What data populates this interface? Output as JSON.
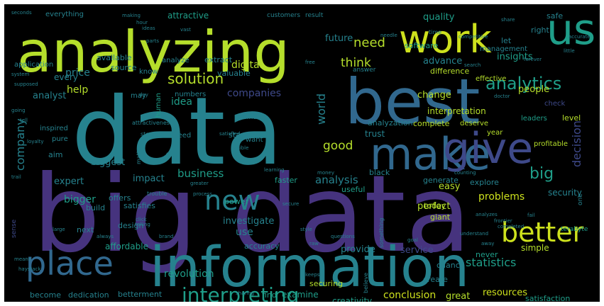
{
  "background": "#000000",
  "palette": {
    "purple": "#46337e",
    "indigo": "#3e4989",
    "blue": "#31688e",
    "teal": "#26828e",
    "green": "#1f9e89",
    "lime": "#b5de2b",
    "yellow": "#cde11d",
    "brightgreen": "#6ece58",
    "lightgreen": "#35b779"
  },
  "words": [
    {
      "text": "big data"
    },
    {
      "text": "data"
    },
    {
      "text": "information"
    },
    {
      "text": "analyzing"
    },
    {
      "text": "best"
    },
    {
      "text": "make"
    },
    {
      "text": "give"
    },
    {
      "text": "work"
    },
    {
      "text": "us"
    },
    {
      "text": "place"
    },
    {
      "text": "new"
    },
    {
      "text": "better"
    },
    {
      "text": "interpreting"
    },
    {
      "text": "analytics"
    },
    {
      "text": "solution"
    },
    {
      "text": "need"
    },
    {
      "text": "think"
    },
    {
      "text": "company"
    },
    {
      "text": "companies"
    },
    {
      "text": "business"
    },
    {
      "text": "statistics"
    },
    {
      "text": "investigate"
    },
    {
      "text": "revolution"
    },
    {
      "text": "conclusion"
    },
    {
      "text": "decision"
    },
    {
      "text": "big"
    },
    {
      "text": "good"
    },
    {
      "text": "world"
    },
    {
      "text": "idea"
    },
    {
      "text": "digital"
    },
    {
      "text": "quality"
    },
    {
      "text": "advance"
    },
    {
      "text": "insights"
    },
    {
      "text": "analysis"
    },
    {
      "text": "problems"
    },
    {
      "text": "help"
    },
    {
      "text": "software"
    },
    {
      "text": "future"
    },
    {
      "text": "price"
    },
    {
      "text": "analyst"
    },
    {
      "text": "every"
    },
    {
      "text": "people"
    },
    {
      "text": "change"
    },
    {
      "text": "interpretation"
    },
    {
      "text": "security"
    },
    {
      "text": "perfect"
    },
    {
      "text": "easy"
    },
    {
      "text": "expert"
    },
    {
      "text": "biggest"
    },
    {
      "text": "bigger"
    },
    {
      "text": "power"
    },
    {
      "text": "impact"
    },
    {
      "text": "faster"
    },
    {
      "text": "useful"
    },
    {
      "text": "generate"
    },
    {
      "text": "explore"
    },
    {
      "text": "today"
    },
    {
      "text": "giant"
    },
    {
      "text": "satisfies"
    },
    {
      "text": "offers"
    },
    {
      "text": "build"
    },
    {
      "text": "design"
    },
    {
      "text": "use"
    },
    {
      "text": "provide"
    },
    {
      "text": "service"
    },
    {
      "text": "never"
    },
    {
      "text": "simple"
    },
    {
      "text": "next"
    },
    {
      "text": "affordable"
    },
    {
      "text": "accuracy"
    },
    {
      "text": "chance"
    },
    {
      "text": "create"
    },
    {
      "text": "securing"
    },
    {
      "text": "creativity"
    },
    {
      "text": "examine"
    },
    {
      "text": "find"
    },
    {
      "text": "great"
    },
    {
      "text": "resources"
    },
    {
      "text": "satisfaction"
    },
    {
      "text": "become"
    },
    {
      "text": "dedication"
    },
    {
      "text": "betterment"
    },
    {
      "text": "attractive"
    },
    {
      "text": "everything"
    },
    {
      "text": "customers"
    },
    {
      "text": "result"
    },
    {
      "text": "safe"
    },
    {
      "text": "right"
    },
    {
      "text": "let"
    },
    {
      "text": "analyze"
    },
    {
      "text": "extract"
    },
    {
      "text": "available"
    },
    {
      "text": "source"
    },
    {
      "text": "know"
    },
    {
      "text": "valuable"
    },
    {
      "text": "difference"
    },
    {
      "text": "effective"
    },
    {
      "text": "management"
    },
    {
      "text": "application"
    },
    {
      "text": "analyzation"
    },
    {
      "text": "complete"
    },
    {
      "text": "deserve"
    },
    {
      "text": "trust"
    },
    {
      "text": "stay"
    },
    {
      "text": "want"
    },
    {
      "text": "speed"
    },
    {
      "text": "inspired"
    },
    {
      "text": "pure"
    },
    {
      "text": "aim"
    },
    {
      "text": "leaders"
    },
    {
      "text": "level"
    },
    {
      "text": "year"
    },
    {
      "text": "check"
    },
    {
      "text": "profitable"
    },
    {
      "text": "black"
    },
    {
      "text": "human"
    },
    {
      "text": "numbers"
    },
    {
      "text": "may"
    },
    {
      "text": "amount"
    },
    {
      "text": "answer"
    },
    {
      "text": "seconds"
    },
    {
      "text": "making"
    },
    {
      "text": "time"
    },
    {
      "text": "competitive"
    },
    {
      "text": "accurate"
    },
    {
      "text": "system"
    },
    {
      "text": "supposed"
    },
    {
      "text": "storage"
    },
    {
      "text": "attractiveness"
    },
    {
      "text": "matter"
    },
    {
      "text": "one"
    },
    {
      "text": "terabyte"
    },
    {
      "text": "sense"
    },
    {
      "text": "means"
    },
    {
      "text": "haystack"
    },
    {
      "text": "brand"
    },
    {
      "text": "always"
    },
    {
      "text": "style"
    },
    {
      "text": "questions"
    },
    {
      "text": "understand"
    },
    {
      "text": "analyzes"
    },
    {
      "text": "frontier"
    },
    {
      "text": "learning"
    },
    {
      "text": "goal"
    },
    {
      "text": "completed"
    },
    {
      "text": "sharing"
    },
    {
      "text": "believe"
    },
    {
      "text": "something"
    },
    {
      "text": "trouble"
    },
    {
      "text": "process"
    },
    {
      "text": "satisfied"
    },
    {
      "text": "visible"
    },
    {
      "text": "fuel"
    },
    {
      "text": "loyalty"
    },
    {
      "text": "trail"
    },
    {
      "text": "going"
    },
    {
      "text": "tell"
    },
    {
      "text": "large"
    },
    {
      "text": "hour"
    },
    {
      "text": "away"
    },
    {
      "text": "money"
    },
    {
      "text": "counting"
    },
    {
      "text": "share"
    },
    {
      "text": "forever"
    },
    {
      "text": "little"
    },
    {
      "text": "parts"
    },
    {
      "text": "free"
    },
    {
      "text": "needle"
    },
    {
      "text": "day"
    },
    {
      "text": "doctor"
    },
    {
      "text": "search"
    },
    {
      "text": "ideas"
    },
    {
      "text": "vast"
    },
    {
      "text": "click"
    },
    {
      "text": "greater"
    },
    {
      "text": "telling"
    },
    {
      "text": "secure"
    },
    {
      "text": "fail"
    },
    {
      "text": "keeps"
    },
    {
      "text": "raw"
    }
  ]
}
